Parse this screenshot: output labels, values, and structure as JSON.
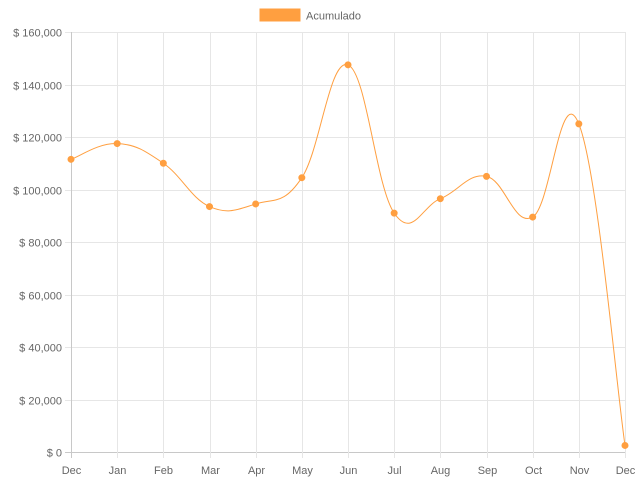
{
  "chart_data": {
    "type": "line",
    "categories": [
      "Dec",
      "Jan",
      "Feb",
      "Mar",
      "Apr",
      "May",
      "Jun",
      "Jul",
      "Aug",
      "Sep",
      "Oct",
      "Nov",
      "Dec"
    ],
    "series": [
      {
        "name": "Acumulado",
        "values": [
          111500,
          117500,
          110000,
          93500,
          94500,
          104500,
          147500,
          91000,
          96500,
          105000,
          89500,
          125000,
          2500
        ],
        "color": "#ff9f40"
      }
    ],
    "title": "",
    "xlabel": "",
    "ylabel": "",
    "ylim": [
      0,
      160000
    ],
    "yticks": [
      0,
      20000,
      40000,
      60000,
      80000,
      100000,
      120000,
      140000,
      160000
    ],
    "ytick_labels": [
      "$ 0",
      "$ 20,000",
      "$ 40,000",
      "$ 60,000",
      "$ 80,000",
      "$ 100,000",
      "$ 120,000",
      "$ 140,000",
      "$ 160,000"
    ],
    "grid": true,
    "legend": "top-center",
    "smooth": true
  }
}
